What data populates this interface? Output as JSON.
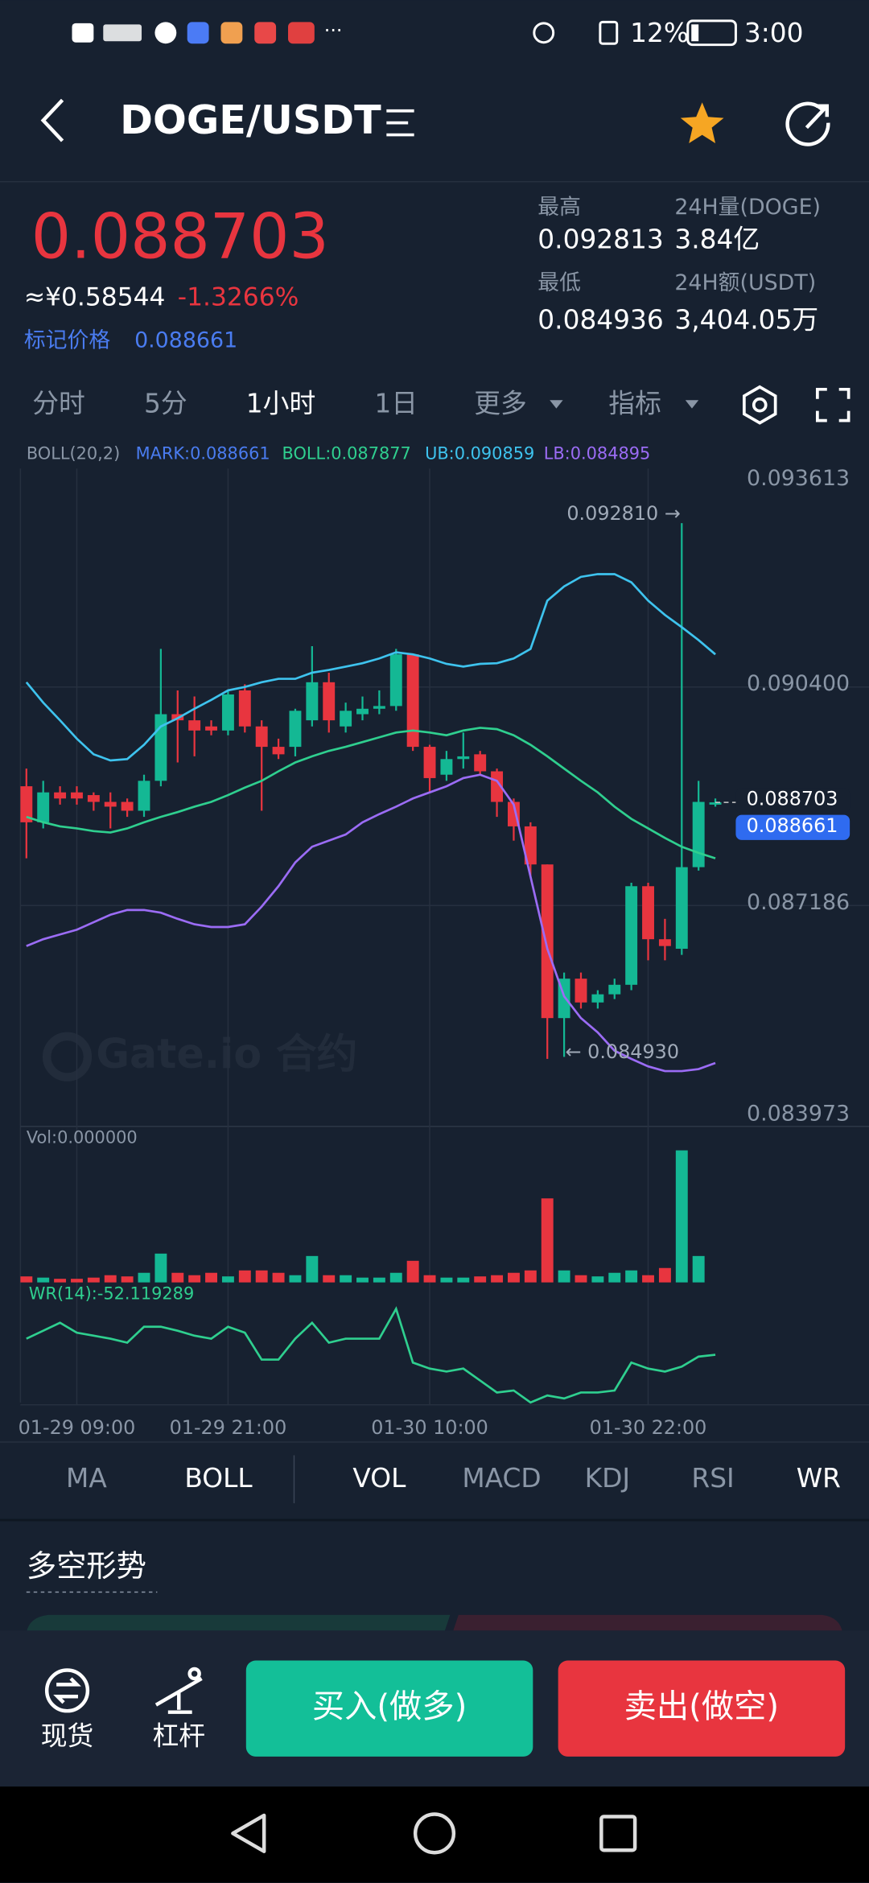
{
  "status_bar": {
    "battery": "12%",
    "time": "3:00"
  },
  "header": {
    "pair": "DOGE/USDT"
  },
  "ticker": {
    "price": "0.088703",
    "cny": "≈¥0.58544",
    "change": "-1.3266%",
    "mark_label": "标记价格",
    "mark_price": "0.088661",
    "stats": [
      {
        "label": "最高",
        "value": "0.092813"
      },
      {
        "label": "24H量(DOGE)",
        "value": "3.84亿"
      },
      {
        "label": "最低",
        "value": "0.084936"
      },
      {
        "label": "24H额(USDT)",
        "value": "3,404.05万"
      }
    ]
  },
  "intervals": [
    "分时",
    "5分",
    "1小时",
    "1日",
    "更多",
    "指标"
  ],
  "chart_data": {
    "type": "candlestick",
    "indicator": "BOLL(20,2)",
    "mark_legend": {
      "label": "MARK:0.088661",
      "color": "#4a7cf0"
    },
    "up_color": "#14b894",
    "down_color": "#e8353f",
    "ylim": [
      0.083973,
      0.093613
    ],
    "yticks": [
      0.093613,
      {
        "value": 0.0904,
        "label": "0.090400"
      },
      0.087186,
      0.083973
    ],
    "categories": [
      null,
      null,
      null,
      "01-29 09:00",
      null,
      null,
      null,
      null,
      null,
      null,
      null,
      null,
      "01-29 21:00",
      null,
      null,
      null,
      null,
      null,
      null,
      null,
      null,
      null,
      null,
      null,
      "01-30 10:00",
      null,
      null,
      null,
      null,
      null,
      null,
      null,
      null,
      null,
      null,
      null,
      null,
      "01-30 22:00",
      null,
      null,
      null,
      null
    ],
    "open": [
      0.08894,
      0.08841,
      0.08885,
      0.08885,
      0.08881,
      0.08871,
      0.08871,
      0.08858,
      0.08902,
      0.09,
      0.08991,
      0.08982,
      0.08976,
      0.09035,
      0.08982,
      0.08952,
      0.08952,
      0.08991,
      0.09047,
      0.08982,
      0.09,
      0.09008,
      0.09012,
      0.09088,
      0.08952,
      0.08911,
      0.08934,
      0.08941,
      0.08916,
      0.08871,
      0.08835,
      0.08779,
      0.08553,
      0.08611,
      0.08576,
      0.08588,
      0.08602,
      0.08747,
      0.08669,
      0.08655,
      0.08775,
      0.08867
    ],
    "close": [
      0.08841,
      0.08885,
      0.08876,
      0.08876,
      0.08871,
      0.08864,
      0.08858,
      0.08902,
      0.09,
      0.08991,
      0.08976,
      0.08976,
      0.09029,
      0.08982,
      0.08952,
      0.08941,
      0.09005,
      0.09047,
      0.08991,
      0.09005,
      0.09008,
      0.09012,
      0.09088,
      0.08952,
      0.08906,
      0.08934,
      0.08938,
      0.08916,
      0.08871,
      0.08835,
      0.08779,
      0.08553,
      0.08611,
      0.08576,
      0.08588,
      0.08602,
      0.08747,
      0.08669,
      0.08659,
      0.08775,
      0.08871,
      0.088703
    ],
    "high": [
      0.0892,
      0.08902,
      0.08894,
      0.08894,
      0.08885,
      0.08885,
      0.08876,
      0.08911,
      0.09096,
      0.09035,
      0.09026,
      0.08991,
      0.09035,
      0.09044,
      0.08991,
      0.08964,
      0.09008,
      0.091,
      0.09061,
      0.09017,
      0.09026,
      0.09035,
      0.09096,
      0.09088,
      0.08955,
      0.08946,
      0.08973,
      0.08946,
      0.0892,
      0.08876,
      0.08841,
      0.08779,
      0.0862,
      0.0862,
      0.08594,
      0.08611,
      0.08752,
      0.08752,
      0.08699,
      0.09281,
      0.08902,
      0.08876
    ],
    "low": [
      0.08788,
      0.08832,
      0.08867,
      0.08867,
      0.08858,
      0.08832,
      0.08849,
      0.08849,
      0.08894,
      0.08929,
      0.08938,
      0.08969,
      0.08969,
      0.08973,
      0.08858,
      0.08934,
      0.08938,
      0.08982,
      0.08973,
      0.08973,
      0.08991,
      0.09,
      0.09005,
      0.08946,
      0.08885,
      0.08902,
      0.0892,
      0.08911,
      0.08849,
      0.08814,
      0.08761,
      0.08493,
      0.08496,
      0.08567,
      0.08567,
      0.08581,
      0.08594,
      0.08638,
      0.08638,
      0.08646,
      0.0877,
      0.08864
    ],
    "series": [
      {
        "label": "BOLL:0.087877",
        "color": "#2fcf8f",
        "values": [
          0.08849,
          0.08841,
          0.08835,
          0.08832,
          0.08828,
          0.08826,
          0.08832,
          0.08841,
          0.08849,
          0.08856,
          0.08864,
          0.08871,
          0.08881,
          0.08892,
          0.08902,
          0.08916,
          0.08929,
          0.08938,
          0.08946,
          0.08952,
          0.08959,
          0.08966,
          0.08973,
          0.08976,
          0.08973,
          0.08969,
          0.08976,
          0.0898,
          0.08978,
          0.08969,
          0.08955,
          0.08938,
          0.0892,
          0.08902,
          0.08885,
          0.08864,
          0.08846,
          0.08832,
          0.08818,
          0.08805,
          0.08796,
          0.08788
        ]
      },
      {
        "label": "UB:0.090859",
        "color": "#3ec3ee",
        "values": [
          0.09047,
          0.09017,
          0.08991,
          0.08964,
          0.08941,
          0.08932,
          0.08934,
          0.08955,
          0.08982,
          0.08994,
          0.09008,
          0.09021,
          0.09035,
          0.0904,
          0.09047,
          0.09052,
          0.09052,
          0.09061,
          0.09065,
          0.0907,
          0.09075,
          0.09082,
          0.09091,
          0.09088,
          0.09082,
          0.09074,
          0.0907,
          0.09074,
          0.09075,
          0.09082,
          0.09096,
          0.09167,
          0.09188,
          0.09202,
          0.09206,
          0.09206,
          0.09194,
          0.09167,
          0.09146,
          0.09128,
          0.09109,
          0.09088
        ]
      },
      {
        "label": "LB:0.084895",
        "color": "#9b6cf5",
        "values": [
          0.08659,
          0.08669,
          0.08676,
          0.08683,
          0.08694,
          0.08705,
          0.08712,
          0.08712,
          0.08708,
          0.08699,
          0.08691,
          0.08687,
          0.08687,
          0.08691,
          0.08717,
          0.08747,
          0.08782,
          0.08805,
          0.08814,
          0.08823,
          0.08841,
          0.08853,
          0.08864,
          0.08876,
          0.08885,
          0.08894,
          0.08906,
          0.08911,
          0.08902,
          0.08867,
          0.08761,
          0.08655,
          0.08585,
          0.08553,
          0.08532,
          0.08505,
          0.08493,
          0.08482,
          0.08475,
          0.08475,
          0.08478,
          0.08487
        ]
      }
    ],
    "annotations": [
      {
        "value": 0.09281,
        "label": "0.092810 →"
      },
      {
        "value": 0.08493,
        "label": "← 0.084930"
      }
    ],
    "price_tags": [
      {
        "value": 0.088703,
        "label": "0.088703"
      },
      {
        "value": 0.088661,
        "label": "0.088661"
      }
    ],
    "watermark": "Gate.io 合约",
    "volume": {
      "label": "Vol:0.000000",
      "values": [
        5,
        4,
        3,
        3,
        4,
        6,
        5,
        8,
        24,
        8,
        6,
        8,
        5,
        10,
        10,
        8,
        6,
        22,
        6,
        6,
        4,
        4,
        8,
        18,
        6,
        4,
        4,
        5,
        6,
        8,
        10,
        70,
        10,
        6,
        5,
        8,
        10,
        6,
        12,
        110,
        22,
        0
      ]
    },
    "wr": {
      "label": "WR(14):-52.119289",
      "ylim": [
        -100,
        0
      ],
      "color": "#2fcf8f",
      "values": [
        -36,
        -28,
        -20,
        -30,
        -33,
        -36,
        -40,
        -24,
        -24,
        -28,
        -33,
        -36,
        -24,
        -30,
        -57,
        -57,
        -36,
        -20,
        -40,
        -36,
        -36,
        -36,
        -6,
        -60,
        -66,
        -69,
        -66,
        -78,
        -90,
        -88,
        -100,
        -93,
        -96,
        -90,
        -90,
        -88,
        -60,
        -66,
        -69,
        -64,
        -54,
        -52.12
      ]
    }
  },
  "indicator_tabs": [
    "MA",
    "BOLL",
    "VOL",
    "MACD",
    "KDJ",
    "RSI",
    "WR"
  ],
  "section": {
    "title": "多空形势"
  },
  "bottom_bar": {
    "spot": "现货",
    "margin": "杠杆",
    "buy": "买入(做多)",
    "sell": "卖出(做空)"
  }
}
